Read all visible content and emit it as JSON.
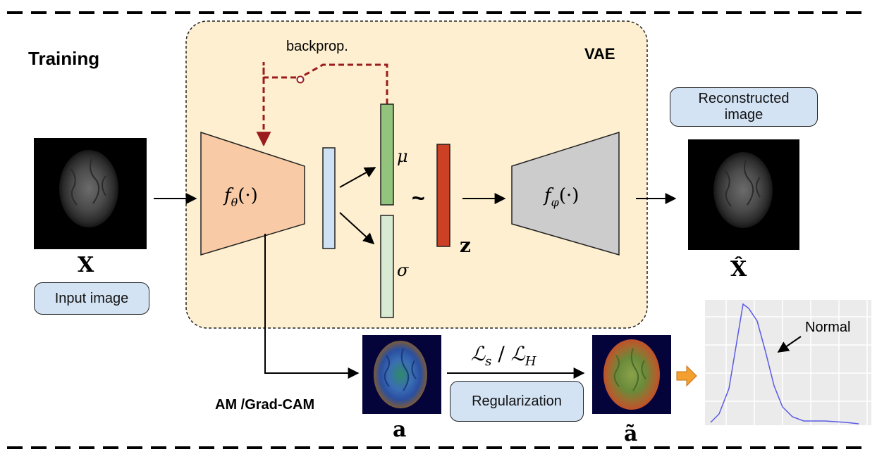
{
  "section_title": "Training",
  "vae": {
    "label": "VAE",
    "backprop_label": "backprop."
  },
  "encoder": {
    "label": "f_θ(·)"
  },
  "decoder": {
    "label": "f_φ(·)"
  },
  "latent": {
    "mu_label": "μ",
    "sigma_label": "σ",
    "tilde": "~",
    "z_label": "z"
  },
  "input": {
    "var_label": "X",
    "caption": "Input image"
  },
  "output": {
    "caption": "Reconstructed image",
    "var_label": "X̂"
  },
  "attention": {
    "method_label": "AM /Grad-CAM",
    "raw_var": "a",
    "loss_label": "ℒs / ℒH",
    "loss_symbol": "ℒ",
    "loss_s_sub": "s",
    "loss_h_sub": "H",
    "regularization_caption": "Regularization",
    "regularized_var": "ã"
  },
  "distribution_plot": {
    "annotation": "Normal"
  },
  "colors": {
    "vae_fill": "#fdefcf",
    "encoder_fill": "#f8cba6",
    "decoder_fill": "#cccccc",
    "mu_fill": "#93c47d",
    "sigma_fill": "#d9ead3",
    "z_fill": "#cc4125",
    "hidden_fill": "#cfe2f3",
    "backprop": "#9b1c1c",
    "pill_fill": "#d3e3f4",
    "curve": "#5a5ae6",
    "arrow_orange": "#f4a030"
  }
}
